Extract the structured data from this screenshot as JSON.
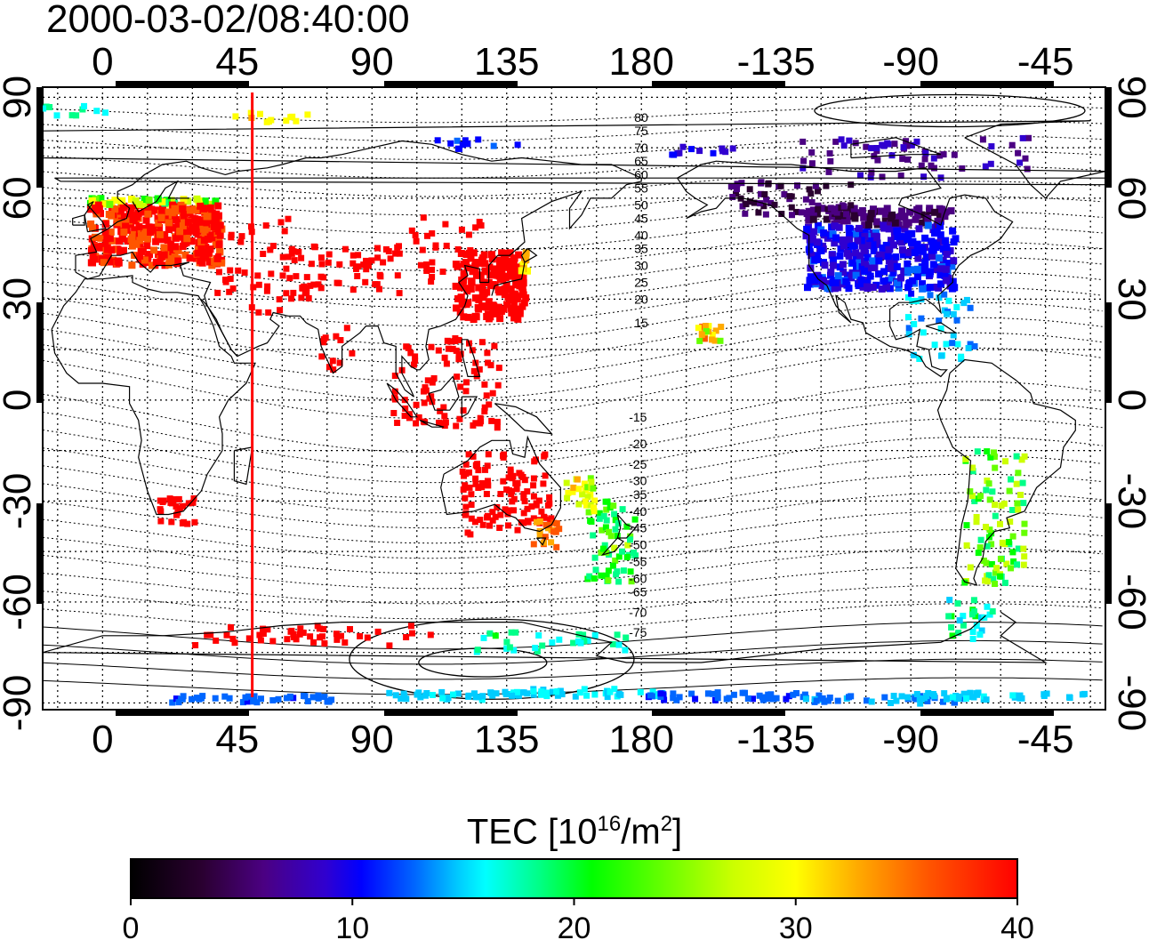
{
  "title": "2000-03-02/08:40:00",
  "map": {
    "lon_ticks_top": [
      "0",
      "45",
      "90",
      "135",
      "180",
      "-135",
      "-90",
      "-45"
    ],
    "lon_ticks_bottom": [
      "0",
      "45",
      "90",
      "135",
      "180",
      "-135",
      "-90",
      "-45"
    ],
    "lat_ticks_left": [
      "90",
      "60",
      "30",
      "0",
      "-30",
      "-60",
      "-90"
    ],
    "lat_ticks_right": [
      "90",
      "60",
      "30",
      "0",
      "-30",
      "-60",
      "-90"
    ],
    "lon_tick_values": [
      0,
      45,
      90,
      135,
      180,
      225,
      270,
      315
    ],
    "lat_tick_values": [
      90,
      60,
      30,
      0,
      -30,
      -60,
      -90
    ],
    "lon_range": [
      -20,
      335
    ],
    "lat_range": [
      -92,
      93
    ],
    "marker_longitude": 50,
    "marker_color": "#ff0000",
    "contour_labels_north": [
      "80",
      "75",
      "70",
      "65",
      "60",
      "55",
      "50",
      "45",
      "40",
      "35",
      "30",
      "25",
      "20",
      "15"
    ],
    "contour_labels_south": [
      "-15",
      "-20",
      "-25",
      "-30",
      "-35",
      "-40",
      "-45",
      "-50",
      "-55",
      "-60",
      "-65",
      "-70",
      "-75"
    ],
    "contour_label_lats_north": [
      84,
      80,
      75,
      71,
      67,
      63,
      58,
      54,
      49,
      45,
      40,
      35,
      30,
      23
    ],
    "contour_label_lats_south": [
      -5,
      -13,
      -19,
      -24,
      -28,
      -33,
      -38,
      -43,
      -48,
      -53,
      -57,
      -63,
      -69
    ]
  },
  "colorbar": {
    "label_prefix": "TEC  [10",
    "label_exp1": "16",
    "label_mid": "/m",
    "label_exp2": "2",
    "label_suffix": "]",
    "ticks": [
      "0",
      "10",
      "20",
      "30",
      "40"
    ],
    "tick_values": [
      0,
      10,
      20,
      30,
      40
    ],
    "range": [
      0,
      40
    ],
    "colors": [
      "#000000",
      "#2a0030",
      "#4b0082",
      "#3000d0",
      "#0000ff",
      "#0066ff",
      "#00ccff",
      "#00ffff",
      "#00ff88",
      "#00ff00",
      "#66ff00",
      "#ccff00",
      "#ffff00",
      "#ffaa00",
      "#ff5500",
      "#ff0000"
    ]
  }
}
